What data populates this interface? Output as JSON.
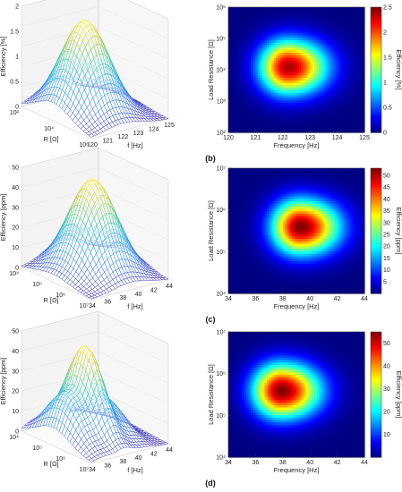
{
  "panels": [
    {
      "tag": "(b)",
      "surface": {
        "type": "surface",
        "zlabel": "Efficiency [%]",
        "xlabel": "f [Hz]",
        "ylabel": "R [Ω]",
        "z_ticks": [
          "0",
          "0.5",
          "1",
          "1.5",
          "2"
        ],
        "x_ticks": [
          "120",
          "121",
          "122",
          "123",
          "124",
          "125"
        ],
        "y_ticks": [
          "10²",
          "10⁴",
          "10⁶"
        ],
        "peak": 2.0
      },
      "heatmap": {
        "type": "heatmap",
        "xlabel": "Frequency [Hz]",
        "ylabel": "Load Resistance [Ω]",
        "colorbar_label": "Efficiency [%]",
        "x_ticks": [
          "120",
          "121",
          "122",
          "123",
          "124",
          "125"
        ],
        "y_ticks": [
          "10²",
          "10³",
          "10⁴",
          "10⁵",
          "10⁶"
        ],
        "colorbar_ticks": [
          "0",
          "0.5",
          "1",
          "1.5",
          "2",
          "2.5"
        ],
        "xlim": [
          120,
          125
        ],
        "log10_ylim": [
          2,
          6
        ],
        "colorbar_range": [
          0,
          2.5
        ],
        "peak": {
          "x": 122.2,
          "log10_y": 4.1,
          "value": 2.4
        }
      }
    },
    {
      "tag": "(c)",
      "surface": {
        "type": "surface",
        "zlabel": "Efficiency [ppm]",
        "xlabel": "f [Hz]",
        "ylabel": "R [Ω]",
        "z_ticks": [
          "0",
          "10",
          "20",
          "30",
          "40",
          "50"
        ],
        "x_ticks": [
          "34",
          "36",
          "38",
          "40",
          "42",
          "44"
        ],
        "y_ticks": [
          "10⁴",
          "10⁵",
          "10⁶",
          "10⁷"
        ],
        "peak": 50
      },
      "heatmap": {
        "type": "heatmap",
        "xlabel": "Frequency [Hz]",
        "ylabel": "Load Resistance [Ω]",
        "colorbar_label": "Efficiency [ppm]",
        "x_ticks": [
          "34",
          "36",
          "38",
          "40",
          "42",
          "44"
        ],
        "y_ticks": [
          "10⁴",
          "10⁵",
          "10⁶",
          "10⁷"
        ],
        "colorbar_ticks": [
          "5",
          "10",
          "15",
          "20",
          "25",
          "30",
          "35",
          "40",
          "45",
          "50"
        ],
        "xlim": [
          34,
          44
        ],
        "log10_ylim": [
          4,
          7
        ],
        "colorbar_range": [
          0,
          53
        ],
        "peak": {
          "x": 39.3,
          "log10_y": 5.6,
          "value": 53
        }
      }
    },
    {
      "tag": "(d)",
      "surface": {
        "type": "surface",
        "zlabel": "Efficiency [ppm]",
        "xlabel": "f [Hz]",
        "ylabel": "R [Ω]",
        "z_ticks": [
          "0",
          "10",
          "20",
          "30",
          "40",
          "50"
        ],
        "x_ticks": [
          "34",
          "36",
          "38",
          "40",
          "42",
          "44"
        ],
        "y_ticks": [
          "10⁴",
          "10⁵",
          "10⁶",
          "10⁷"
        ],
        "peak": 50
      },
      "heatmap": {
        "type": "heatmap",
        "xlabel": "Frequency [Hz]",
        "ylabel": "Load Resistance [Ω]",
        "colorbar_label": "Efficiency [ppm]",
        "x_ticks": [
          "34",
          "36",
          "38",
          "40",
          "42",
          "44"
        ],
        "y_ticks": [
          "10⁴",
          "10⁵",
          "10⁶",
          "10⁷"
        ],
        "colorbar_ticks": [
          "10",
          "20",
          "30",
          "40",
          "50"
        ],
        "xlim": [
          34,
          44
        ],
        "log10_ylim": [
          4,
          7
        ],
        "colorbar_range": [
          0,
          55
        ],
        "peak": {
          "x": 37.9,
          "log10_y": 5.6,
          "value": 55
        }
      }
    }
  ]
}
